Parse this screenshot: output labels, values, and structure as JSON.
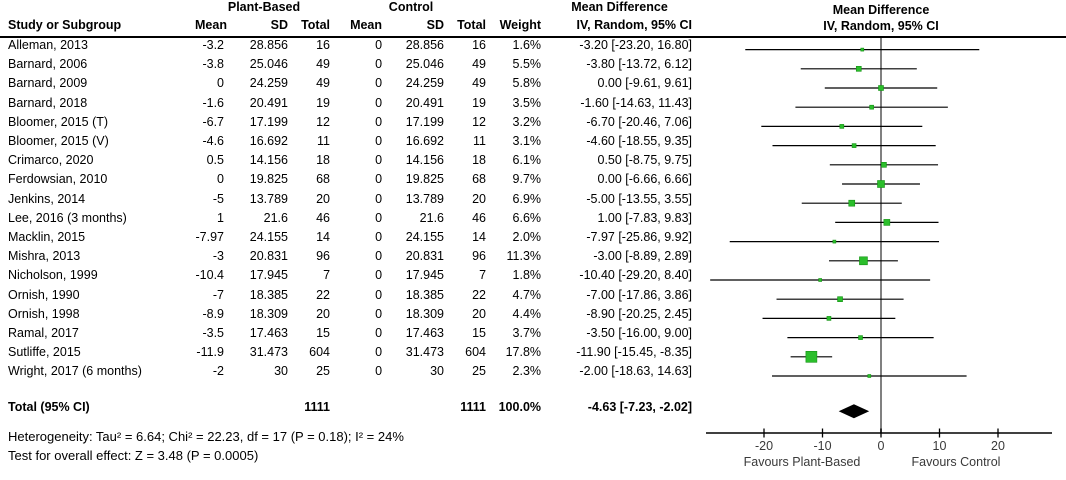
{
  "headers": {
    "study": "Study or Subgroup",
    "mean": "Mean",
    "sd": "SD",
    "total": "Total",
    "weight": "Weight",
    "md_line1": "Mean Difference",
    "md_line2": "IV, Random, 95% CI"
  },
  "chart_data": {
    "type": "forest",
    "group1": "Plant-Based",
    "group2": "Control",
    "effect_measure": "Mean Difference, IV, Random, 95% CI",
    "studies": [
      {
        "name": "Alleman, 2013",
        "mean1": "-3.2",
        "sd1": "28.856",
        "n1": "16",
        "mean2": "0",
        "sd2": "28.856",
        "n2": "16",
        "weight_label": "1.6%",
        "weight": 1.6,
        "ci_label": "-3.20 [-23.20, 16.80]",
        "est": -3.2,
        "lo": -23.2,
        "hi": 16.8
      },
      {
        "name": "Barnard, 2006",
        "mean1": "-3.8",
        "sd1": "25.046",
        "n1": "49",
        "mean2": "0",
        "sd2": "25.046",
        "n2": "49",
        "weight_label": "5.5%",
        "weight": 5.5,
        "ci_label": "-3.80 [-13.72, 6.12]",
        "est": -3.8,
        "lo": -13.72,
        "hi": 6.12
      },
      {
        "name": "Barnard, 2009",
        "mean1": "0",
        "sd1": "24.259",
        "n1": "49",
        "mean2": "0",
        "sd2": "24.259",
        "n2": "49",
        "weight_label": "5.8%",
        "weight": 5.8,
        "ci_label": "0.00 [-9.61, 9.61]",
        "est": 0,
        "lo": -9.61,
        "hi": 9.61
      },
      {
        "name": "Barnard, 2018",
        "mean1": "-1.6",
        "sd1": "20.491",
        "n1": "19",
        "mean2": "0",
        "sd2": "20.491",
        "n2": "19",
        "weight_label": "3.5%",
        "weight": 3.5,
        "ci_label": "-1.60 [-14.63, 11.43]",
        "est": -1.6,
        "lo": -14.63,
        "hi": 11.43
      },
      {
        "name": "Bloomer, 2015 (T)",
        "mean1": "-6.7",
        "sd1": "17.199",
        "n1": "12",
        "mean2": "0",
        "sd2": "17.199",
        "n2": "12",
        "weight_label": "3.2%",
        "weight": 3.2,
        "ci_label": "-6.70 [-20.46, 7.06]",
        "est": -6.7,
        "lo": -20.46,
        "hi": 7.06
      },
      {
        "name": "Bloomer, 2015 (V)",
        "mean1": "-4.6",
        "sd1": "16.692",
        "n1": "11",
        "mean2": "0",
        "sd2": "16.692",
        "n2": "11",
        "weight_label": "3.1%",
        "weight": 3.1,
        "ci_label": "-4.60 [-18.55, 9.35]",
        "est": -4.6,
        "lo": -18.55,
        "hi": 9.35
      },
      {
        "name": "Crimarco, 2020",
        "mean1": "0.5",
        "sd1": "14.156",
        "n1": "18",
        "mean2": "0",
        "sd2": "14.156",
        "n2": "18",
        "weight_label": "6.1%",
        "weight": 6.1,
        "ci_label": "0.50 [-8.75, 9.75]",
        "est": 0.5,
        "lo": -8.75,
        "hi": 9.75
      },
      {
        "name": "Ferdowsian, 2010",
        "mean1": "0",
        "sd1": "19.825",
        "n1": "68",
        "mean2": "0",
        "sd2": "19.825",
        "n2": "68",
        "weight_label": "9.7%",
        "weight": 9.7,
        "ci_label": "0.00 [-6.66, 6.66]",
        "est": 0,
        "lo": -6.66,
        "hi": 6.66
      },
      {
        "name": "Jenkins, 2014",
        "mean1": "-5",
        "sd1": "13.789",
        "n1": "20",
        "mean2": "0",
        "sd2": "13.789",
        "n2": "20",
        "weight_label": "6.9%",
        "weight": 6.9,
        "ci_label": "-5.00 [-13.55, 3.55]",
        "est": -5,
        "lo": -13.55,
        "hi": 3.55
      },
      {
        "name": "Lee, 2016 (3 months)",
        "mean1": "1",
        "sd1": "21.6",
        "n1": "46",
        "mean2": "0",
        "sd2": "21.6",
        "n2": "46",
        "weight_label": "6.6%",
        "weight": 6.6,
        "ci_label": "1.00 [-7.83, 9.83]",
        "est": 1,
        "lo": -7.83,
        "hi": 9.83
      },
      {
        "name": "Macklin, 2015",
        "mean1": "-7.97",
        "sd1": "24.155",
        "n1": "14",
        "mean2": "0",
        "sd2": "24.155",
        "n2": "14",
        "weight_label": "2.0%",
        "weight": 2.0,
        "ci_label": "-7.97 [-25.86, 9.92]",
        "est": -7.97,
        "lo": -25.86,
        "hi": 9.92
      },
      {
        "name": "Mishra, 2013",
        "mean1": "-3",
        "sd1": "20.831",
        "n1": "96",
        "mean2": "0",
        "sd2": "20.831",
        "n2": "96",
        "weight_label": "11.3%",
        "weight": 11.3,
        "ci_label": "-3.00 [-8.89, 2.89]",
        "est": -3,
        "lo": -8.89,
        "hi": 2.89
      },
      {
        "name": "Nicholson, 1999",
        "mean1": "-10.4",
        "sd1": "17.945",
        "n1": "7",
        "mean2": "0",
        "sd2": "17.945",
        "n2": "7",
        "weight_label": "1.8%",
        "weight": 1.8,
        "ci_label": "-10.40 [-29.20, 8.40]",
        "est": -10.4,
        "lo": -29.2,
        "hi": 8.4
      },
      {
        "name": "Ornish, 1990",
        "mean1": "-7",
        "sd1": "18.385",
        "n1": "22",
        "mean2": "0",
        "sd2": "18.385",
        "n2": "22",
        "weight_label": "4.7%",
        "weight": 4.7,
        "ci_label": "-7.00 [-17.86, 3.86]",
        "est": -7,
        "lo": -17.86,
        "hi": 3.86
      },
      {
        "name": "Ornish, 1998",
        "mean1": "-8.9",
        "sd1": "18.309",
        "n1": "20",
        "mean2": "0",
        "sd2": "18.309",
        "n2": "20",
        "weight_label": "4.4%",
        "weight": 4.4,
        "ci_label": "-8.90 [-20.25, 2.45]",
        "est": -8.9,
        "lo": -20.25,
        "hi": 2.45
      },
      {
        "name": "Ramal, 2017",
        "mean1": "-3.5",
        "sd1": "17.463",
        "n1": "15",
        "mean2": "0",
        "sd2": "17.463",
        "n2": "15",
        "weight_label": "3.7%",
        "weight": 3.7,
        "ci_label": "-3.50 [-16.00, 9.00]",
        "est": -3.5,
        "lo": -16,
        "hi": 9
      },
      {
        "name": "Sutliffe, 2015",
        "mean1": "-11.9",
        "sd1": "31.473",
        "n1": "604",
        "mean2": "0",
        "sd2": "31.473",
        "n2": "604",
        "weight_label": "17.8%",
        "weight": 17.8,
        "ci_label": "-11.90 [-15.45, -8.35]",
        "est": -11.9,
        "lo": -15.45,
        "hi": -8.35
      },
      {
        "name": "Wright, 2017 (6 months)",
        "mean1": "-2",
        "sd1": "30",
        "n1": "25",
        "mean2": "0",
        "sd2": "30",
        "n2": "25",
        "weight_label": "2.3%",
        "weight": 2.3,
        "ci_label": "-2.00 [-18.63, 14.63]",
        "est": -2,
        "lo": -18.63,
        "hi": 14.63
      }
    ],
    "total": {
      "label": "Total (95% CI)",
      "n1": "1111",
      "n2": "1111",
      "weight_label": "100.0%",
      "ci_label": "-4.63 [-7.23, -2.02]",
      "est": -4.63,
      "lo": -7.23,
      "hi": -2.02
    },
    "axis": {
      "ticks": [
        -20,
        -10,
        0,
        10,
        20
      ],
      "xmin": -29.9,
      "xmax": 29.2,
      "favours_left": "Favours Plant-Based",
      "favours_right": "Favours Control"
    },
    "footnotes": {
      "heterogeneity": "Heterogeneity: Tau² = 6.64; Chi² = 22.23, df = 17 (P = 0.18); I² = 24%",
      "overall": "Test for overall effect: Z = 3.48 (P = 0.0005)"
    },
    "colors": {
      "marker": "#2BBE2B",
      "marker_border": "#159315",
      "diamond": "#000000",
      "zero_line": "#808080",
      "ci_line": "#000000",
      "axis": "#000000",
      "axis_text": "#3a3a3a"
    }
  }
}
